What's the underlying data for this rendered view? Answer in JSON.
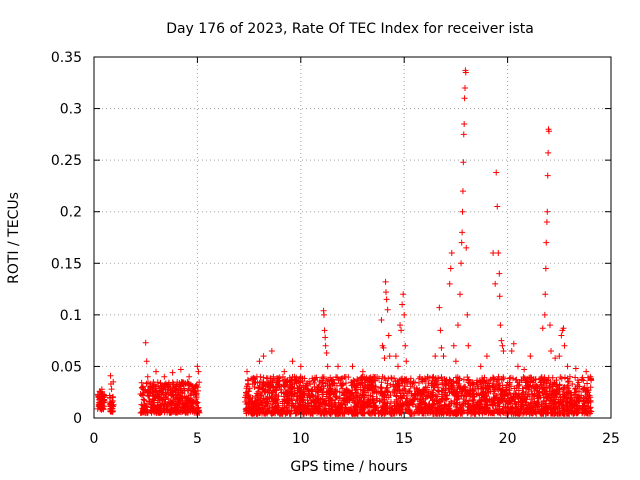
{
  "chart_data": {
    "type": "scatter",
    "title": "Day 176 of 2023, Rate Of TEC Index for receiver ista",
    "xlabel": "GPS time / hours",
    "ylabel": "ROTI / TECUs",
    "xlim": [
      0,
      25
    ],
    "ylim": [
      0,
      0.35
    ],
    "xticks": [
      0,
      5,
      10,
      15,
      20,
      25
    ],
    "xtick_labels": [
      "0",
      "5",
      "10",
      "15",
      "20",
      "25"
    ],
    "yticks": [
      0,
      0.05,
      0.1,
      0.15,
      0.2,
      0.25,
      0.3,
      0.35
    ],
    "ytick_labels": [
      "0",
      "0.05",
      "0.1",
      "0.15",
      "0.2",
      "0.25",
      "0.3",
      "0.35"
    ],
    "grid": true,
    "marker": "+",
    "color": "#ff0000",
    "series": [
      {
        "name": "ROTI",
        "points": [
          [
            0.2,
            0.022
          ],
          [
            0.25,
            0.015
          ],
          [
            0.3,
            0.025
          ],
          [
            0.35,
            0.012
          ],
          [
            0.4,
            0.018
          ],
          [
            0.45,
            0.02
          ],
          [
            0.8,
            0.041
          ],
          [
            0.82,
            0.033
          ],
          [
            0.85,
            0.028
          ],
          [
            0.88,
            0.012
          ],
          [
            0.9,
            0.02
          ],
          [
            0.93,
            0.035
          ],
          [
            2.5,
            0.073
          ],
          [
            2.55,
            0.055
          ],
          [
            2.6,
            0.04
          ],
          [
            2.7,
            0.03
          ],
          [
            3.0,
            0.045
          ],
          [
            3.4,
            0.04
          ],
          [
            3.8,
            0.044
          ],
          [
            4.2,
            0.047
          ],
          [
            4.6,
            0.04
          ],
          [
            5.0,
            0.05
          ],
          [
            5.05,
            0.045
          ],
          [
            7.4,
            0.045
          ],
          [
            7.6,
            0.038
          ],
          [
            8.0,
            0.055
          ],
          [
            8.2,
            0.06
          ],
          [
            8.6,
            0.065
          ],
          [
            9.2,
            0.045
          ],
          [
            9.6,
            0.055
          ],
          [
            9.7,
            0.04
          ],
          [
            10.0,
            0.05
          ],
          [
            11.1,
            0.104
          ],
          [
            11.12,
            0.1
          ],
          [
            11.15,
            0.085
          ],
          [
            11.18,
            0.078
          ],
          [
            11.2,
            0.07
          ],
          [
            11.25,
            0.063
          ],
          [
            11.3,
            0.05
          ],
          [
            11.8,
            0.05
          ],
          [
            12.5,
            0.05
          ],
          [
            13.0,
            0.045
          ],
          [
            13.5,
            0.04
          ],
          [
            13.9,
            0.095
          ],
          [
            13.95,
            0.07
          ],
          [
            14.0,
            0.068
          ],
          [
            14.05,
            0.058
          ],
          [
            14.1,
            0.132
          ],
          [
            14.12,
            0.122
          ],
          [
            14.15,
            0.115
          ],
          [
            14.2,
            0.105
          ],
          [
            14.25,
            0.08
          ],
          [
            14.3,
            0.06
          ],
          [
            14.6,
            0.06
          ],
          [
            14.7,
            0.05
          ],
          [
            14.8,
            0.09
          ],
          [
            14.85,
            0.085
          ],
          [
            14.9,
            0.11
          ],
          [
            14.95,
            0.12
          ],
          [
            15.0,
            0.1
          ],
          [
            15.05,
            0.07
          ],
          [
            15.1,
            0.055
          ],
          [
            16.5,
            0.06
          ],
          [
            16.7,
            0.107
          ],
          [
            16.75,
            0.085
          ],
          [
            16.8,
            0.068
          ],
          [
            16.9,
            0.06
          ],
          [
            17.2,
            0.13
          ],
          [
            17.25,
            0.145
          ],
          [
            17.3,
            0.16
          ],
          [
            17.4,
            0.07
          ],
          [
            17.5,
            0.055
          ],
          [
            17.6,
            0.09
          ],
          [
            17.7,
            0.12
          ],
          [
            17.75,
            0.15
          ],
          [
            17.78,
            0.17
          ],
          [
            17.8,
            0.18
          ],
          [
            17.82,
            0.2
          ],
          [
            17.84,
            0.22
          ],
          [
            17.86,
            0.248
          ],
          [
            17.88,
            0.275
          ],
          [
            17.9,
            0.285
          ],
          [
            17.92,
            0.31
          ],
          [
            17.94,
            0.32
          ],
          [
            17.96,
            0.337
          ],
          [
            17.98,
            0.335
          ],
          [
            18.0,
            0.165
          ],
          [
            18.05,
            0.1
          ],
          [
            18.1,
            0.07
          ],
          [
            18.7,
            0.05
          ],
          [
            19.0,
            0.06
          ],
          [
            19.3,
            0.16
          ],
          [
            19.4,
            0.13
          ],
          [
            19.45,
            0.238
          ],
          [
            19.5,
            0.205
          ],
          [
            19.55,
            0.16
          ],
          [
            19.6,
            0.14
          ],
          [
            19.62,
            0.118
          ],
          [
            19.65,
            0.09
          ],
          [
            19.7,
            0.075
          ],
          [
            19.75,
            0.07
          ],
          [
            19.8,
            0.065
          ],
          [
            20.2,
            0.065
          ],
          [
            20.3,
            0.072
          ],
          [
            20.5,
            0.05
          ],
          [
            20.8,
            0.047
          ],
          [
            21.1,
            0.06
          ],
          [
            21.7,
            0.087
          ],
          [
            21.8,
            0.1
          ],
          [
            21.82,
            0.12
          ],
          [
            21.85,
            0.145
          ],
          [
            21.87,
            0.17
          ],
          [
            21.9,
            0.19
          ],
          [
            21.92,
            0.2
          ],
          [
            21.94,
            0.235
          ],
          [
            21.96,
            0.257
          ],
          [
            21.98,
            0.28
          ],
          [
            22.0,
            0.278
          ],
          [
            22.05,
            0.09
          ],
          [
            22.1,
            0.065
          ],
          [
            22.3,
            0.058
          ],
          [
            22.5,
            0.06
          ],
          [
            22.6,
            0.08
          ],
          [
            22.65,
            0.085
          ],
          [
            22.7,
            0.087
          ],
          [
            22.75,
            0.07
          ],
          [
            22.9,
            0.05
          ],
          [
            23.3,
            0.048
          ],
          [
            23.8,
            0.045
          ],
          [
            24.0,
            0.04
          ]
        ],
        "bands": [
          [
            0.15,
            0.5,
            0.008,
            0.028
          ],
          [
            0.75,
            0.95,
            0.006,
            0.022
          ],
          [
            2.25,
            5.1,
            0.005,
            0.035
          ],
          [
            7.3,
            24.05,
            0.004,
            0.04
          ]
        ]
      }
    ]
  }
}
